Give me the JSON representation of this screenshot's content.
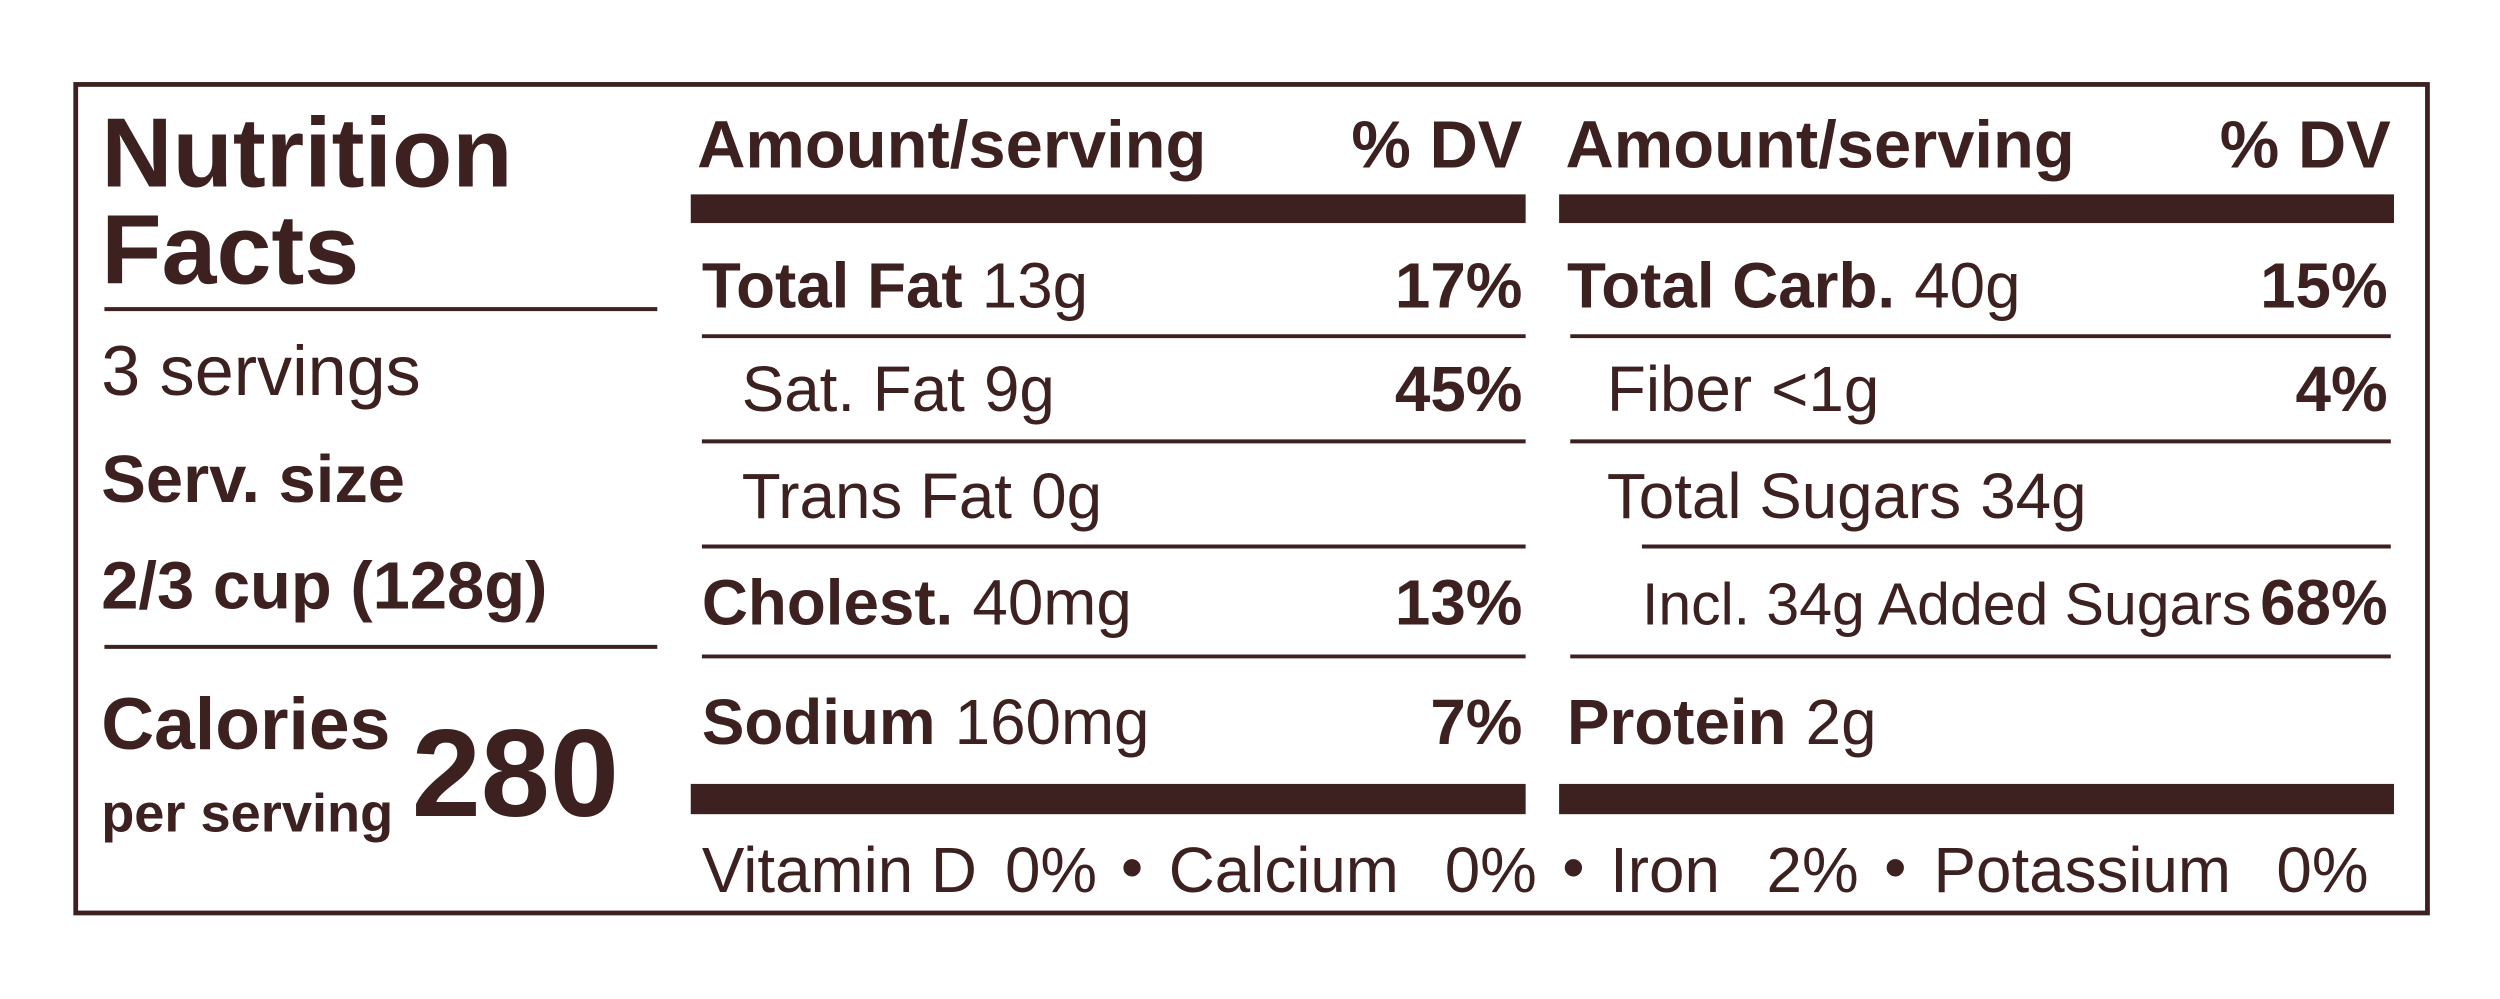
{
  "header": {
    "title_line1": "Nutrition",
    "title_line2": "Facts",
    "servings": "3 servings",
    "serving_size_label": "Serv. size",
    "serving_size": "2/3 cup (128g)",
    "calories_label_line1": "Calories",
    "calories_label_line2": "per serving",
    "calories": 280
  },
  "columns": [
    {
      "amount_header": "Amount/serving",
      "dv_header": "% DV",
      "rows": [
        {
          "name": "Total Fat",
          "amount": "13g",
          "dv": "17%"
        },
        {
          "name": "Sat. Fat",
          "amount": "9g",
          "dv": "45%"
        },
        {
          "name": "Trans Fat",
          "amount": "0g"
        },
        {
          "name": "Cholest.",
          "amount": "40mg",
          "dv": "13%"
        },
        {
          "name": "Sodium",
          "amount": "160mg",
          "dv": "7%"
        }
      ]
    },
    {
      "amount_header": "Amount/serving",
      "dv_header": "% DV",
      "rows": [
        {
          "name": "Total Carb.",
          "amount": "40g",
          "dv": "15%"
        },
        {
          "name": "Fiber",
          "amount": "<1g",
          "dv": "4%"
        },
        {
          "name": "Total Sugars",
          "amount": "34g"
        },
        {
          "name": "Incl. 34g Added Sugars",
          "dv": "68%"
        },
        {
          "name": "Protein",
          "amount": "2g"
        }
      ]
    }
  ],
  "vitamins": [
    {
      "name": "Vitamin D",
      "dv": "0%"
    },
    {
      "name": "Calcium",
      "dv": "0%"
    },
    {
      "name": "Iron",
      "dv": "2%"
    },
    {
      "name": "Potassium",
      "dv": "0%"
    }
  ]
}
